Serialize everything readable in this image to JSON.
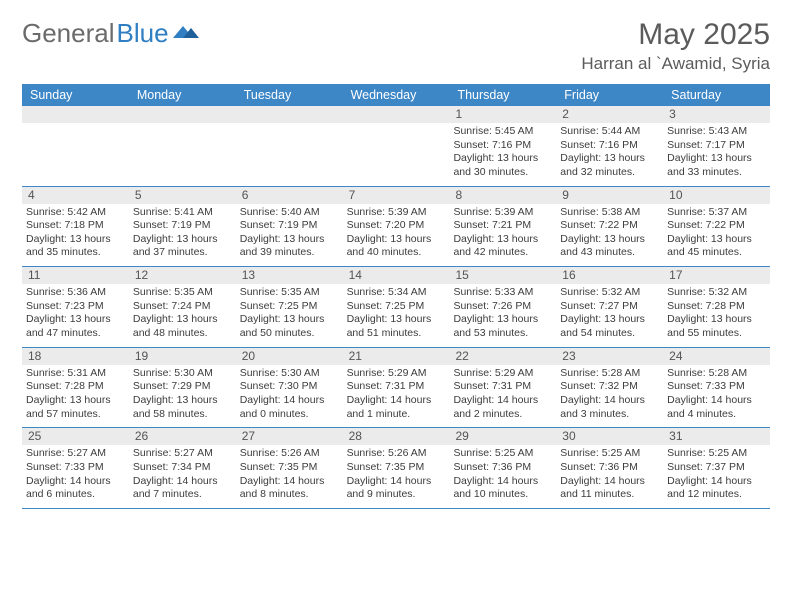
{
  "brand": {
    "part1": "General",
    "part2": "Blue"
  },
  "title": "May 2025",
  "subtitle": "Harran al `Awamid, Syria",
  "colors": {
    "header_bg": "#3d87c7",
    "header_text": "#ffffff",
    "band_bg": "#ebebeb",
    "body_text": "#3c3c3c",
    "title_text": "#5b5b5b",
    "brand_grey": "#6b6b6b",
    "brand_blue": "#2f7fc2",
    "rule": "#3d87c7"
  },
  "dow": [
    "Sunday",
    "Monday",
    "Tuesday",
    "Wednesday",
    "Thursday",
    "Friday",
    "Saturday"
  ],
  "weeks": [
    [
      {
        "n": "",
        "sunrise": "",
        "sunset": "",
        "daylight": ""
      },
      {
        "n": "",
        "sunrise": "",
        "sunset": "",
        "daylight": ""
      },
      {
        "n": "",
        "sunrise": "",
        "sunset": "",
        "daylight": ""
      },
      {
        "n": "",
        "sunrise": "",
        "sunset": "",
        "daylight": ""
      },
      {
        "n": "1",
        "sunrise": "5:45 AM",
        "sunset": "7:16 PM",
        "daylight": "13 hours and 30 minutes."
      },
      {
        "n": "2",
        "sunrise": "5:44 AM",
        "sunset": "7:16 PM",
        "daylight": "13 hours and 32 minutes."
      },
      {
        "n": "3",
        "sunrise": "5:43 AM",
        "sunset": "7:17 PM",
        "daylight": "13 hours and 33 minutes."
      }
    ],
    [
      {
        "n": "4",
        "sunrise": "5:42 AM",
        "sunset": "7:18 PM",
        "daylight": "13 hours and 35 minutes."
      },
      {
        "n": "5",
        "sunrise": "5:41 AM",
        "sunset": "7:19 PM",
        "daylight": "13 hours and 37 minutes."
      },
      {
        "n": "6",
        "sunrise": "5:40 AM",
        "sunset": "7:19 PM",
        "daylight": "13 hours and 39 minutes."
      },
      {
        "n": "7",
        "sunrise": "5:39 AM",
        "sunset": "7:20 PM",
        "daylight": "13 hours and 40 minutes."
      },
      {
        "n": "8",
        "sunrise": "5:39 AM",
        "sunset": "7:21 PM",
        "daylight": "13 hours and 42 minutes."
      },
      {
        "n": "9",
        "sunrise": "5:38 AM",
        "sunset": "7:22 PM",
        "daylight": "13 hours and 43 minutes."
      },
      {
        "n": "10",
        "sunrise": "5:37 AM",
        "sunset": "7:22 PM",
        "daylight": "13 hours and 45 minutes."
      }
    ],
    [
      {
        "n": "11",
        "sunrise": "5:36 AM",
        "sunset": "7:23 PM",
        "daylight": "13 hours and 47 minutes."
      },
      {
        "n": "12",
        "sunrise": "5:35 AM",
        "sunset": "7:24 PM",
        "daylight": "13 hours and 48 minutes."
      },
      {
        "n": "13",
        "sunrise": "5:35 AM",
        "sunset": "7:25 PM",
        "daylight": "13 hours and 50 minutes."
      },
      {
        "n": "14",
        "sunrise": "5:34 AM",
        "sunset": "7:25 PM",
        "daylight": "13 hours and 51 minutes."
      },
      {
        "n": "15",
        "sunrise": "5:33 AM",
        "sunset": "7:26 PM",
        "daylight": "13 hours and 53 minutes."
      },
      {
        "n": "16",
        "sunrise": "5:32 AM",
        "sunset": "7:27 PM",
        "daylight": "13 hours and 54 minutes."
      },
      {
        "n": "17",
        "sunrise": "5:32 AM",
        "sunset": "7:28 PM",
        "daylight": "13 hours and 55 minutes."
      }
    ],
    [
      {
        "n": "18",
        "sunrise": "5:31 AM",
        "sunset": "7:28 PM",
        "daylight": "13 hours and 57 minutes."
      },
      {
        "n": "19",
        "sunrise": "5:30 AM",
        "sunset": "7:29 PM",
        "daylight": "13 hours and 58 minutes."
      },
      {
        "n": "20",
        "sunrise": "5:30 AM",
        "sunset": "7:30 PM",
        "daylight": "14 hours and 0 minutes."
      },
      {
        "n": "21",
        "sunrise": "5:29 AM",
        "sunset": "7:31 PM",
        "daylight": "14 hours and 1 minute."
      },
      {
        "n": "22",
        "sunrise": "5:29 AM",
        "sunset": "7:31 PM",
        "daylight": "14 hours and 2 minutes."
      },
      {
        "n": "23",
        "sunrise": "5:28 AM",
        "sunset": "7:32 PM",
        "daylight": "14 hours and 3 minutes."
      },
      {
        "n": "24",
        "sunrise": "5:28 AM",
        "sunset": "7:33 PM",
        "daylight": "14 hours and 4 minutes."
      }
    ],
    [
      {
        "n": "25",
        "sunrise": "5:27 AM",
        "sunset": "7:33 PM",
        "daylight": "14 hours and 6 minutes."
      },
      {
        "n": "26",
        "sunrise": "5:27 AM",
        "sunset": "7:34 PM",
        "daylight": "14 hours and 7 minutes."
      },
      {
        "n": "27",
        "sunrise": "5:26 AM",
        "sunset": "7:35 PM",
        "daylight": "14 hours and 8 minutes."
      },
      {
        "n": "28",
        "sunrise": "5:26 AM",
        "sunset": "7:35 PM",
        "daylight": "14 hours and 9 minutes."
      },
      {
        "n": "29",
        "sunrise": "5:25 AM",
        "sunset": "7:36 PM",
        "daylight": "14 hours and 10 minutes."
      },
      {
        "n": "30",
        "sunrise": "5:25 AM",
        "sunset": "7:36 PM",
        "daylight": "14 hours and 11 minutes."
      },
      {
        "n": "31",
        "sunrise": "5:25 AM",
        "sunset": "7:37 PM",
        "daylight": "14 hours and 12 minutes."
      }
    ]
  ],
  "labels": {
    "sunrise": "Sunrise:",
    "sunset": "Sunset:",
    "daylight": "Daylight:"
  }
}
